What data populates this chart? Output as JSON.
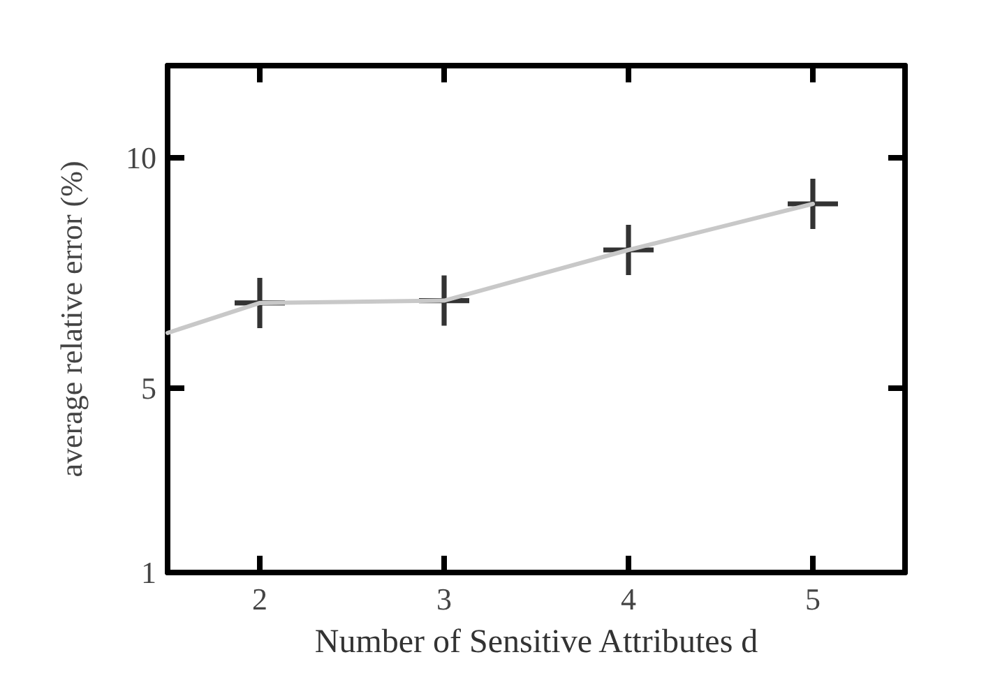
{
  "chart_data": {
    "type": "scatter",
    "xlabel": "Number of Sensitive Attributes d",
    "ylabel": "average relative error (%)",
    "x": [
      2,
      3,
      4,
      5
    ],
    "xlim": [
      1.5,
      5.5
    ],
    "xticks": [
      2,
      3,
      4,
      5
    ],
    "ylim": [
      1,
      12
    ],
    "yticks": [
      1,
      5,
      10
    ],
    "grid": false,
    "series": [
      {
        "type": "line",
        "color": "#c8c8c8",
        "marker": "none",
        "x": [
          1.5,
          2,
          3,
          4,
          5
        ],
        "values": [
          6.2,
          6.85,
          6.9,
          8,
          9
        ]
      },
      {
        "color": "#000000",
        "marker": "cross",
        "values": [
          6.85,
          6.9,
          8,
          9
        ]
      }
    ]
  }
}
